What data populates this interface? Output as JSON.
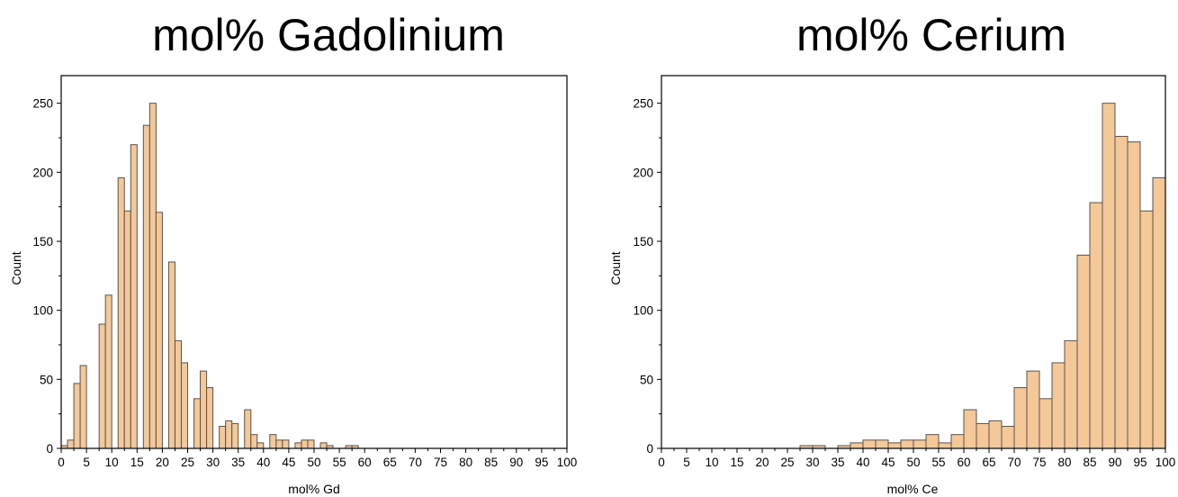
{
  "chart_data": [
    {
      "type": "bar",
      "title": "mol% Gadolinium",
      "xlabel": "mol% Gd",
      "ylabel": "Count",
      "xlim": [
        0,
        100
      ],
      "ylim": [
        0,
        270
      ],
      "bin_width": 1.25,
      "x_ticks": [
        0,
        5,
        10,
        15,
        20,
        25,
        30,
        35,
        40,
        45,
        50,
        55,
        60,
        65,
        70,
        75,
        80,
        85,
        90,
        95,
        100
      ],
      "y_ticks": [
        0,
        50,
        100,
        150,
        200,
        250
      ],
      "bar_color": "#F5C898",
      "edge_color": "#555555",
      "bins": [
        {
          "x": 0.0,
          "count": 2
        },
        {
          "x": 1.25,
          "count": 6
        },
        {
          "x": 2.5,
          "count": 47
        },
        {
          "x": 3.75,
          "count": 60
        },
        {
          "x": 5.0,
          "count": 0
        },
        {
          "x": 6.25,
          "count": 0
        },
        {
          "x": 7.5,
          "count": 90
        },
        {
          "x": 8.75,
          "count": 111
        },
        {
          "x": 10.0,
          "count": 0
        },
        {
          "x": 11.25,
          "count": 196
        },
        {
          "x": 12.5,
          "count": 172
        },
        {
          "x": 13.75,
          "count": 220
        },
        {
          "x": 15.0,
          "count": 0
        },
        {
          "x": 16.25,
          "count": 234
        },
        {
          "x": 17.5,
          "count": 250
        },
        {
          "x": 18.75,
          "count": 171
        },
        {
          "x": 20.0,
          "count": 0
        },
        {
          "x": 21.25,
          "count": 135
        },
        {
          "x": 22.5,
          "count": 78
        },
        {
          "x": 23.75,
          "count": 62
        },
        {
          "x": 25.0,
          "count": 0
        },
        {
          "x": 26.25,
          "count": 36
        },
        {
          "x": 27.5,
          "count": 56
        },
        {
          "x": 28.75,
          "count": 44
        },
        {
          "x": 30.0,
          "count": 0
        },
        {
          "x": 31.25,
          "count": 16
        },
        {
          "x": 32.5,
          "count": 20
        },
        {
          "x": 33.75,
          "count": 18
        },
        {
          "x": 35.0,
          "count": 0
        },
        {
          "x": 36.25,
          "count": 28
        },
        {
          "x": 37.5,
          "count": 10
        },
        {
          "x": 38.75,
          "count": 4
        },
        {
          "x": 40.0,
          "count": 0
        },
        {
          "x": 41.25,
          "count": 10
        },
        {
          "x": 42.5,
          "count": 6
        },
        {
          "x": 43.75,
          "count": 6
        },
        {
          "x": 45.0,
          "count": 0
        },
        {
          "x": 46.25,
          "count": 4
        },
        {
          "x": 47.5,
          "count": 6
        },
        {
          "x": 48.75,
          "count": 6
        },
        {
          "x": 50.0,
          "count": 0
        },
        {
          "x": 51.25,
          "count": 4
        },
        {
          "x": 52.5,
          "count": 2
        },
        {
          "x": 53.75,
          "count": 0
        },
        {
          "x": 56.25,
          "count": 2
        },
        {
          "x": 57.5,
          "count": 2
        }
      ]
    },
    {
      "type": "bar",
      "title": "mol% Cerium",
      "xlabel": "mol% Ce",
      "ylabel": "Count",
      "xlim": [
        0,
        100
      ],
      "ylim": [
        0,
        270
      ],
      "bin_width": 2.5,
      "x_ticks": [
        0,
        5,
        10,
        15,
        20,
        25,
        30,
        35,
        40,
        45,
        50,
        55,
        60,
        65,
        70,
        75,
        80,
        85,
        90,
        95,
        100
      ],
      "y_ticks": [
        0,
        50,
        100,
        150,
        200,
        250
      ],
      "bar_color": "#F5C898",
      "edge_color": "#555555",
      "bins": [
        {
          "x": 27.5,
          "count": 2
        },
        {
          "x": 30.0,
          "count": 2
        },
        {
          "x": 35.0,
          "count": 2
        },
        {
          "x": 37.5,
          "count": 4
        },
        {
          "x": 40.0,
          "count": 6
        },
        {
          "x": 42.5,
          "count": 6
        },
        {
          "x": 45.0,
          "count": 4
        },
        {
          "x": 47.5,
          "count": 6
        },
        {
          "x": 50.0,
          "count": 6
        },
        {
          "x": 52.5,
          "count": 10
        },
        {
          "x": 55.0,
          "count": 4
        },
        {
          "x": 57.5,
          "count": 10
        },
        {
          "x": 60.0,
          "count": 28
        },
        {
          "x": 62.5,
          "count": 18
        },
        {
          "x": 65.0,
          "count": 20
        },
        {
          "x": 67.5,
          "count": 16
        },
        {
          "x": 70.0,
          "count": 44
        },
        {
          "x": 72.5,
          "count": 56
        },
        {
          "x": 75.0,
          "count": 36
        },
        {
          "x": 77.5,
          "count": 62
        },
        {
          "x": 80.0,
          "count": 78
        },
        {
          "x": 82.5,
          "count": 140
        },
        {
          "x": 85.0,
          "count": 178
        },
        {
          "x": 87.5,
          "count": 250
        },
        {
          "x": 90.0,
          "count": 226
        },
        {
          "x": 92.5,
          "count": 222
        },
        {
          "x": 95.0,
          "count": 172
        },
        {
          "x": 97.5,
          "count": 196
        }
      ]
    }
  ]
}
